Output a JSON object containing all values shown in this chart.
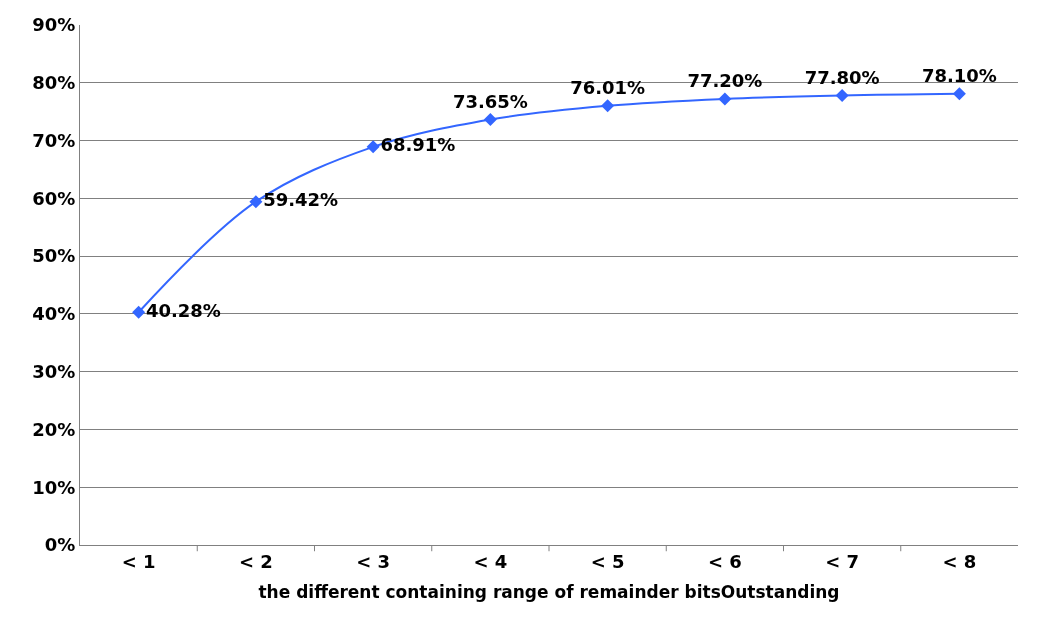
{
  "chart_data": {
    "type": "line",
    "xlabel": "the different containing range of remainder bitsOutstanding",
    "categories": [
      "< 1",
      "< 2",
      "< 3",
      "< 4",
      "< 5",
      "< 6",
      "< 7",
      "< 8"
    ],
    "series": [
      {
        "color": "#3366ff",
        "values": [
          40.28,
          59.42,
          68.91,
          73.65,
          76.01,
          77.2,
          77.8,
          78.1
        ],
        "value_labels": [
          "40.28%",
          "59.42%",
          "68.91%",
          "73.65%",
          "76.01%",
          "77.20%",
          "77.80%",
          "78.10%"
        ]
      }
    ],
    "ylim": [
      0,
      90
    ],
    "yticks": [
      {
        "value": 0,
        "label": "0%"
      },
      {
        "value": 10,
        "label": "10%"
      },
      {
        "value": 20,
        "label": "20%"
      },
      {
        "value": 30,
        "label": "30%"
      },
      {
        "value": 40,
        "label": "40%"
      },
      {
        "value": 50,
        "label": "50%"
      },
      {
        "value": 60,
        "label": "60%"
      },
      {
        "value": 70,
        "label": "70%"
      },
      {
        "value": 80,
        "label": "80%"
      },
      {
        "value": 90,
        "label": "90%"
      }
    ],
    "grid": "y",
    "marker": "diamond",
    "line_style": "solid",
    "legend": false
  }
}
